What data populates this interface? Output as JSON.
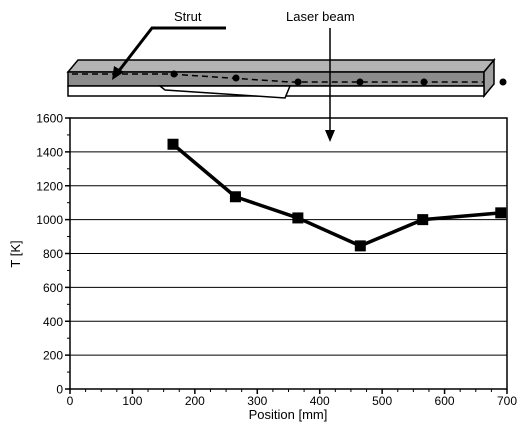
{
  "chart_data": {
    "type": "line",
    "title": "",
    "xlabel": "Position [mm]",
    "ylabel": "T [K]",
    "xlim": [
      0,
      700
    ],
    "ylim": [
      0,
      1600
    ],
    "grid": "horizontal",
    "x_ticks": [
      "0",
      "100",
      "200",
      "300",
      "400",
      "500",
      "600",
      "700"
    ],
    "y_ticks": [
      "0",
      "200",
      "400",
      "600",
      "800",
      "1000",
      "1200",
      "1400",
      "1600"
    ],
    "series": [
      {
        "marker": "square",
        "x": [
          165,
          265,
          365,
          465,
          565,
          690
        ],
        "y": [
          1445,
          1135,
          1010,
          845,
          1000,
          1040
        ]
      }
    ]
  },
  "diagram": {
    "strut_label": "Strut",
    "laser_label": "Laser beam"
  },
  "colors": {
    "line": "#000000",
    "grid": "#000000",
    "beam_fill": "#8c8c8c"
  }
}
